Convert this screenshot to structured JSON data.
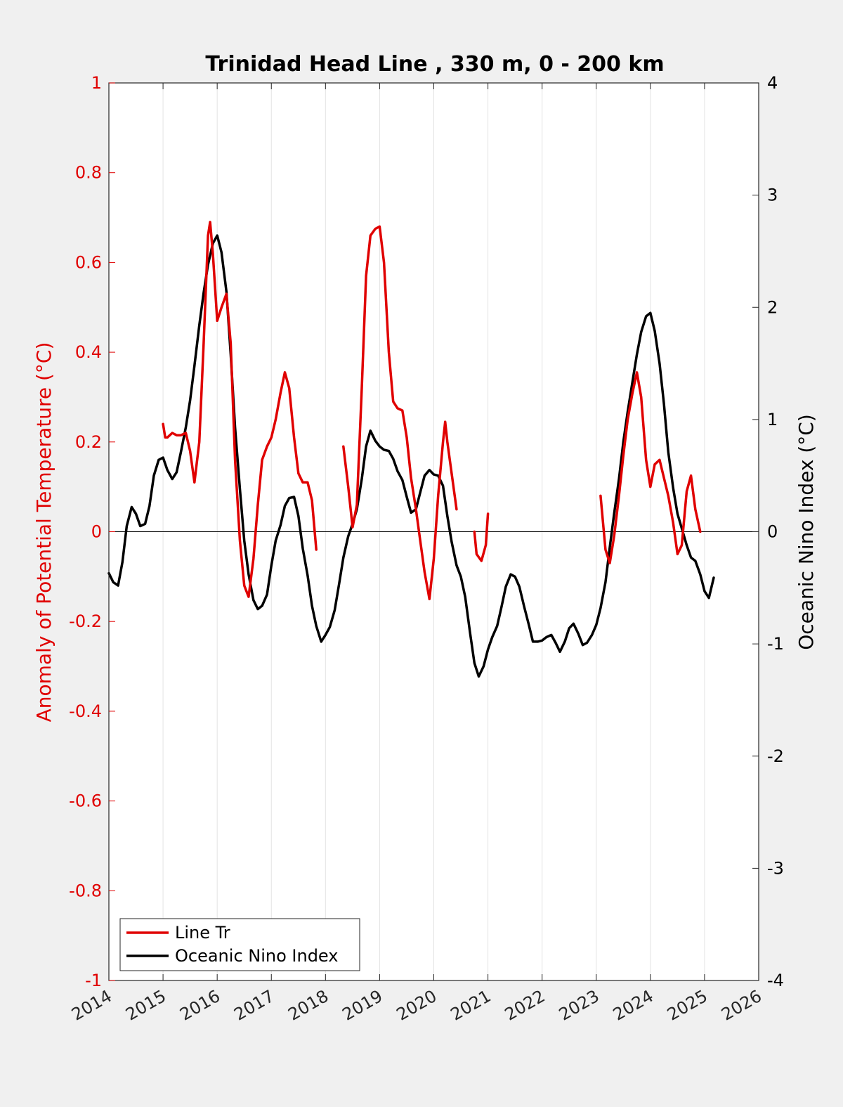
{
  "chart_data": {
    "type": "line",
    "title": "Trinidad Head Line , 330 m, 0 - 200 km",
    "xlabel": "",
    "ylabel_left": "Anomaly of Potential Temperature (°C)",
    "ylabel_right": "Oceanic Nino Index (°C)",
    "xlim": [
      2014,
      2026
    ],
    "ylim_left": [
      -1,
      1
    ],
    "ylim_right": [
      -4,
      4
    ],
    "xticks": [
      2014,
      2015,
      2016,
      2017,
      2018,
      2019,
      2020,
      2021,
      2022,
      2023,
      2024,
      2025,
      2026
    ],
    "yticks_left": [
      1,
      0.8,
      0.6,
      0.4,
      0.2,
      0,
      -0.2,
      -0.4,
      -0.6,
      -0.8,
      -1
    ],
    "yticks_right": [
      4,
      3,
      2,
      1,
      0,
      -1,
      -2,
      -3,
      -4
    ],
    "grid": "vertical",
    "legend_position": "bottom-left",
    "colors": {
      "line_tr": "#e00000",
      "oni": "#000000",
      "left_axis": "#e00000",
      "background": "#f0f0f0",
      "plot_bg": "#ffffff"
    },
    "series": [
      {
        "name": "Line Tr",
        "axis": "left",
        "color": "#e00000",
        "segments": [
          [
            [
              2015.0,
              0.24
            ],
            [
              2015.04,
              0.21
            ],
            [
              2015.08,
              0.21
            ],
            [
              2015.17,
              0.22
            ],
            [
              2015.25,
              0.215
            ],
            [
              2015.33,
              0.215
            ],
            [
              2015.42,
              0.22
            ],
            [
              2015.5,
              0.18
            ],
            [
              2015.58,
              0.11
            ],
            [
              2015.67,
              0.2
            ],
            [
              2015.75,
              0.42
            ],
            [
              2015.83,
              0.66
            ],
            [
              2015.87,
              0.69
            ],
            [
              2015.92,
              0.62
            ],
            [
              2016.0,
              0.47
            ],
            [
              2016.08,
              0.5
            ],
            [
              2016.17,
              0.53
            ],
            [
              2016.25,
              0.42
            ],
            [
              2016.33,
              0.16
            ],
            [
              2016.42,
              -0.02
            ],
            [
              2016.5,
              -0.12
            ],
            [
              2016.58,
              -0.145
            ],
            [
              2016.67,
              -0.06
            ],
            [
              2016.75,
              0.06
            ],
            [
              2016.83,
              0.16
            ],
            [
              2016.92,
              0.19
            ],
            [
              2017.0,
              0.21
            ],
            [
              2017.08,
              0.25
            ],
            [
              2017.17,
              0.31
            ],
            [
              2017.25,
              0.355
            ],
            [
              2017.33,
              0.32
            ],
            [
              2017.42,
              0.21
            ],
            [
              2017.5,
              0.13
            ],
            [
              2017.58,
              0.11
            ],
            [
              2017.67,
              0.11
            ],
            [
              2017.75,
              0.07
            ],
            [
              2017.83,
              -0.04
            ]
          ],
          [
            [
              2018.33,
              0.19
            ],
            [
              2018.42,
              0.1
            ],
            [
              2018.5,
              0.01
            ],
            [
              2018.58,
              0.06
            ],
            [
              2018.67,
              0.32
            ],
            [
              2018.75,
              0.57
            ],
            [
              2018.83,
              0.66
            ],
            [
              2018.92,
              0.675
            ],
            [
              2019.0,
              0.68
            ],
            [
              2019.08,
              0.6
            ],
            [
              2019.17,
              0.4
            ],
            [
              2019.25,
              0.29
            ],
            [
              2019.33,
              0.275
            ],
            [
              2019.42,
              0.27
            ],
            [
              2019.5,
              0.21
            ],
            [
              2019.58,
              0.12
            ],
            [
              2019.67,
              0.05
            ],
            [
              2019.75,
              -0.02
            ],
            [
              2019.83,
              -0.09
            ],
            [
              2019.92,
              -0.15
            ],
            [
              2020.0,
              -0.06
            ],
            [
              2020.08,
              0.08
            ],
            [
              2020.17,
              0.2
            ],
            [
              2020.21,
              0.245
            ],
            [
              2020.25,
              0.2
            ],
            [
              2020.33,
              0.13
            ],
            [
              2020.42,
              0.05
            ]
          ],
          [
            [
              2020.75,
              0.0
            ],
            [
              2020.79,
              -0.05
            ],
            [
              2020.88,
              -0.065
            ],
            [
              2020.96,
              -0.03
            ],
            [
              2021.0,
              0.04
            ]
          ],
          [
            [
              2023.08,
              0.08
            ],
            [
              2023.17,
              -0.04
            ],
            [
              2023.25,
              -0.07
            ],
            [
              2023.33,
              -0.01
            ],
            [
              2023.42,
              0.08
            ],
            [
              2023.5,
              0.17
            ],
            [
              2023.58,
              0.25
            ],
            [
              2023.67,
              0.31
            ],
            [
              2023.75,
              0.355
            ],
            [
              2023.83,
              0.3
            ],
            [
              2023.92,
              0.16
            ],
            [
              2024.0,
              0.1
            ],
            [
              2024.08,
              0.15
            ],
            [
              2024.17,
              0.16
            ],
            [
              2024.25,
              0.12
            ],
            [
              2024.33,
              0.08
            ],
            [
              2024.42,
              0.02
            ],
            [
              2024.5,
              -0.05
            ],
            [
              2024.58,
              -0.03
            ],
            [
              2024.67,
              0.09
            ],
            [
              2024.75,
              0.125
            ],
            [
              2024.83,
              0.05
            ],
            [
              2024.92,
              0.0
            ]
          ]
        ]
      },
      {
        "name": "Oceanic Nino Index",
        "axis": "right",
        "color": "#000000",
        "segments": [
          [
            [
              2014.0,
              -0.37
            ],
            [
              2014.08,
              -0.45
            ],
            [
              2014.17,
              -0.48
            ],
            [
              2014.25,
              -0.27
            ],
            [
              2014.33,
              0.05
            ],
            [
              2014.42,
              0.22
            ],
            [
              2014.5,
              0.16
            ],
            [
              2014.58,
              0.05
            ],
            [
              2014.67,
              0.07
            ],
            [
              2014.75,
              0.23
            ],
            [
              2014.83,
              0.5
            ],
            [
              2014.92,
              0.64
            ],
            [
              2015.0,
              0.66
            ],
            [
              2015.08,
              0.55
            ],
            [
              2015.17,
              0.47
            ],
            [
              2015.25,
              0.53
            ],
            [
              2015.33,
              0.71
            ],
            [
              2015.42,
              0.93
            ],
            [
              2015.5,
              1.17
            ],
            [
              2015.58,
              1.48
            ],
            [
              2015.67,
              1.84
            ],
            [
              2015.75,
              2.13
            ],
            [
              2015.83,
              2.38
            ],
            [
              2015.92,
              2.57
            ],
            [
              2016.0,
              2.64
            ],
            [
              2016.08,
              2.49
            ],
            [
              2016.17,
              2.14
            ],
            [
              2016.25,
              1.58
            ],
            [
              2016.33,
              0.93
            ],
            [
              2016.42,
              0.38
            ],
            [
              2016.5,
              -0.08
            ],
            [
              2016.58,
              -0.38
            ],
            [
              2016.67,
              -0.61
            ],
            [
              2016.75,
              -0.69
            ],
            [
              2016.83,
              -0.66
            ],
            [
              2016.92,
              -0.56
            ],
            [
              2017.0,
              -0.3
            ],
            [
              2017.08,
              -0.08
            ],
            [
              2017.17,
              0.06
            ],
            [
              2017.25,
              0.23
            ],
            [
              2017.33,
              0.3
            ],
            [
              2017.42,
              0.31
            ],
            [
              2017.5,
              0.14
            ],
            [
              2017.58,
              -0.15
            ],
            [
              2017.67,
              -0.39
            ],
            [
              2017.75,
              -0.66
            ],
            [
              2017.83,
              -0.84
            ],
            [
              2017.92,
              -0.98
            ],
            [
              2018.0,
              -0.92
            ],
            [
              2018.08,
              -0.85
            ],
            [
              2018.17,
              -0.7
            ],
            [
              2018.25,
              -0.47
            ],
            [
              2018.33,
              -0.23
            ],
            [
              2018.42,
              -0.04
            ],
            [
              2018.5,
              0.07
            ],
            [
              2018.58,
              0.2
            ],
            [
              2018.67,
              0.47
            ],
            [
              2018.75,
              0.76
            ],
            [
              2018.83,
              0.9
            ],
            [
              2018.92,
              0.81
            ],
            [
              2019.0,
              0.76
            ],
            [
              2019.08,
              0.73
            ],
            [
              2019.17,
              0.72
            ],
            [
              2019.25,
              0.65
            ],
            [
              2019.33,
              0.54
            ],
            [
              2019.42,
              0.46
            ],
            [
              2019.5,
              0.31
            ],
            [
              2019.58,
              0.17
            ],
            [
              2019.67,
              0.2
            ],
            [
              2019.75,
              0.35
            ],
            [
              2019.83,
              0.5
            ],
            [
              2019.92,
              0.55
            ],
            [
              2020.0,
              0.51
            ],
            [
              2020.08,
              0.5
            ],
            [
              2020.17,
              0.41
            ],
            [
              2020.25,
              0.14
            ],
            [
              2020.33,
              -0.09
            ],
            [
              2020.42,
              -0.3
            ],
            [
              2020.5,
              -0.4
            ],
            [
              2020.58,
              -0.58
            ],
            [
              2020.67,
              -0.9
            ],
            [
              2020.75,
              -1.17
            ],
            [
              2020.83,
              -1.29
            ],
            [
              2020.92,
              -1.2
            ],
            [
              2021.0,
              -1.05
            ],
            [
              2021.08,
              -0.94
            ],
            [
              2021.17,
              -0.84
            ],
            [
              2021.25,
              -0.67
            ],
            [
              2021.33,
              -0.49
            ],
            [
              2021.42,
              -0.38
            ],
            [
              2021.5,
              -0.4
            ],
            [
              2021.58,
              -0.49
            ],
            [
              2021.67,
              -0.67
            ],
            [
              2021.75,
              -0.82
            ],
            [
              2021.83,
              -0.98
            ],
            [
              2021.92,
              -0.98
            ],
            [
              2022.0,
              -0.97
            ],
            [
              2022.08,
              -0.94
            ],
            [
              2022.17,
              -0.92
            ],
            [
              2022.25,
              -0.99
            ],
            [
              2022.33,
              -1.07
            ],
            [
              2022.42,
              -0.98
            ],
            [
              2022.5,
              -0.86
            ],
            [
              2022.58,
              -0.82
            ],
            [
              2022.67,
              -0.91
            ],
            [
              2022.75,
              -1.01
            ],
            [
              2022.83,
              -0.99
            ],
            [
              2022.92,
              -0.92
            ],
            [
              2023.0,
              -0.83
            ],
            [
              2023.08,
              -0.68
            ],
            [
              2023.17,
              -0.45
            ],
            [
              2023.25,
              -0.14
            ],
            [
              2023.33,
              0.16
            ],
            [
              2023.42,
              0.47
            ],
            [
              2023.5,
              0.8
            ],
            [
              2023.58,
              1.07
            ],
            [
              2023.67,
              1.34
            ],
            [
              2023.75,
              1.58
            ],
            [
              2023.83,
              1.78
            ],
            [
              2023.92,
              1.92
            ],
            [
              2024.0,
              1.95
            ],
            [
              2024.08,
              1.79
            ],
            [
              2024.17,
              1.5
            ],
            [
              2024.25,
              1.14
            ],
            [
              2024.33,
              0.71
            ],
            [
              2024.42,
              0.39
            ],
            [
              2024.5,
              0.16
            ],
            [
              2024.58,
              0.03
            ],
            [
              2024.67,
              -0.12
            ],
            [
              2024.75,
              -0.23
            ],
            [
              2024.83,
              -0.26
            ],
            [
              2024.92,
              -0.38
            ],
            [
              2025.0,
              -0.53
            ],
            [
              2025.08,
              -0.59
            ],
            [
              2025.17,
              -0.41
            ]
          ]
        ]
      }
    ]
  }
}
